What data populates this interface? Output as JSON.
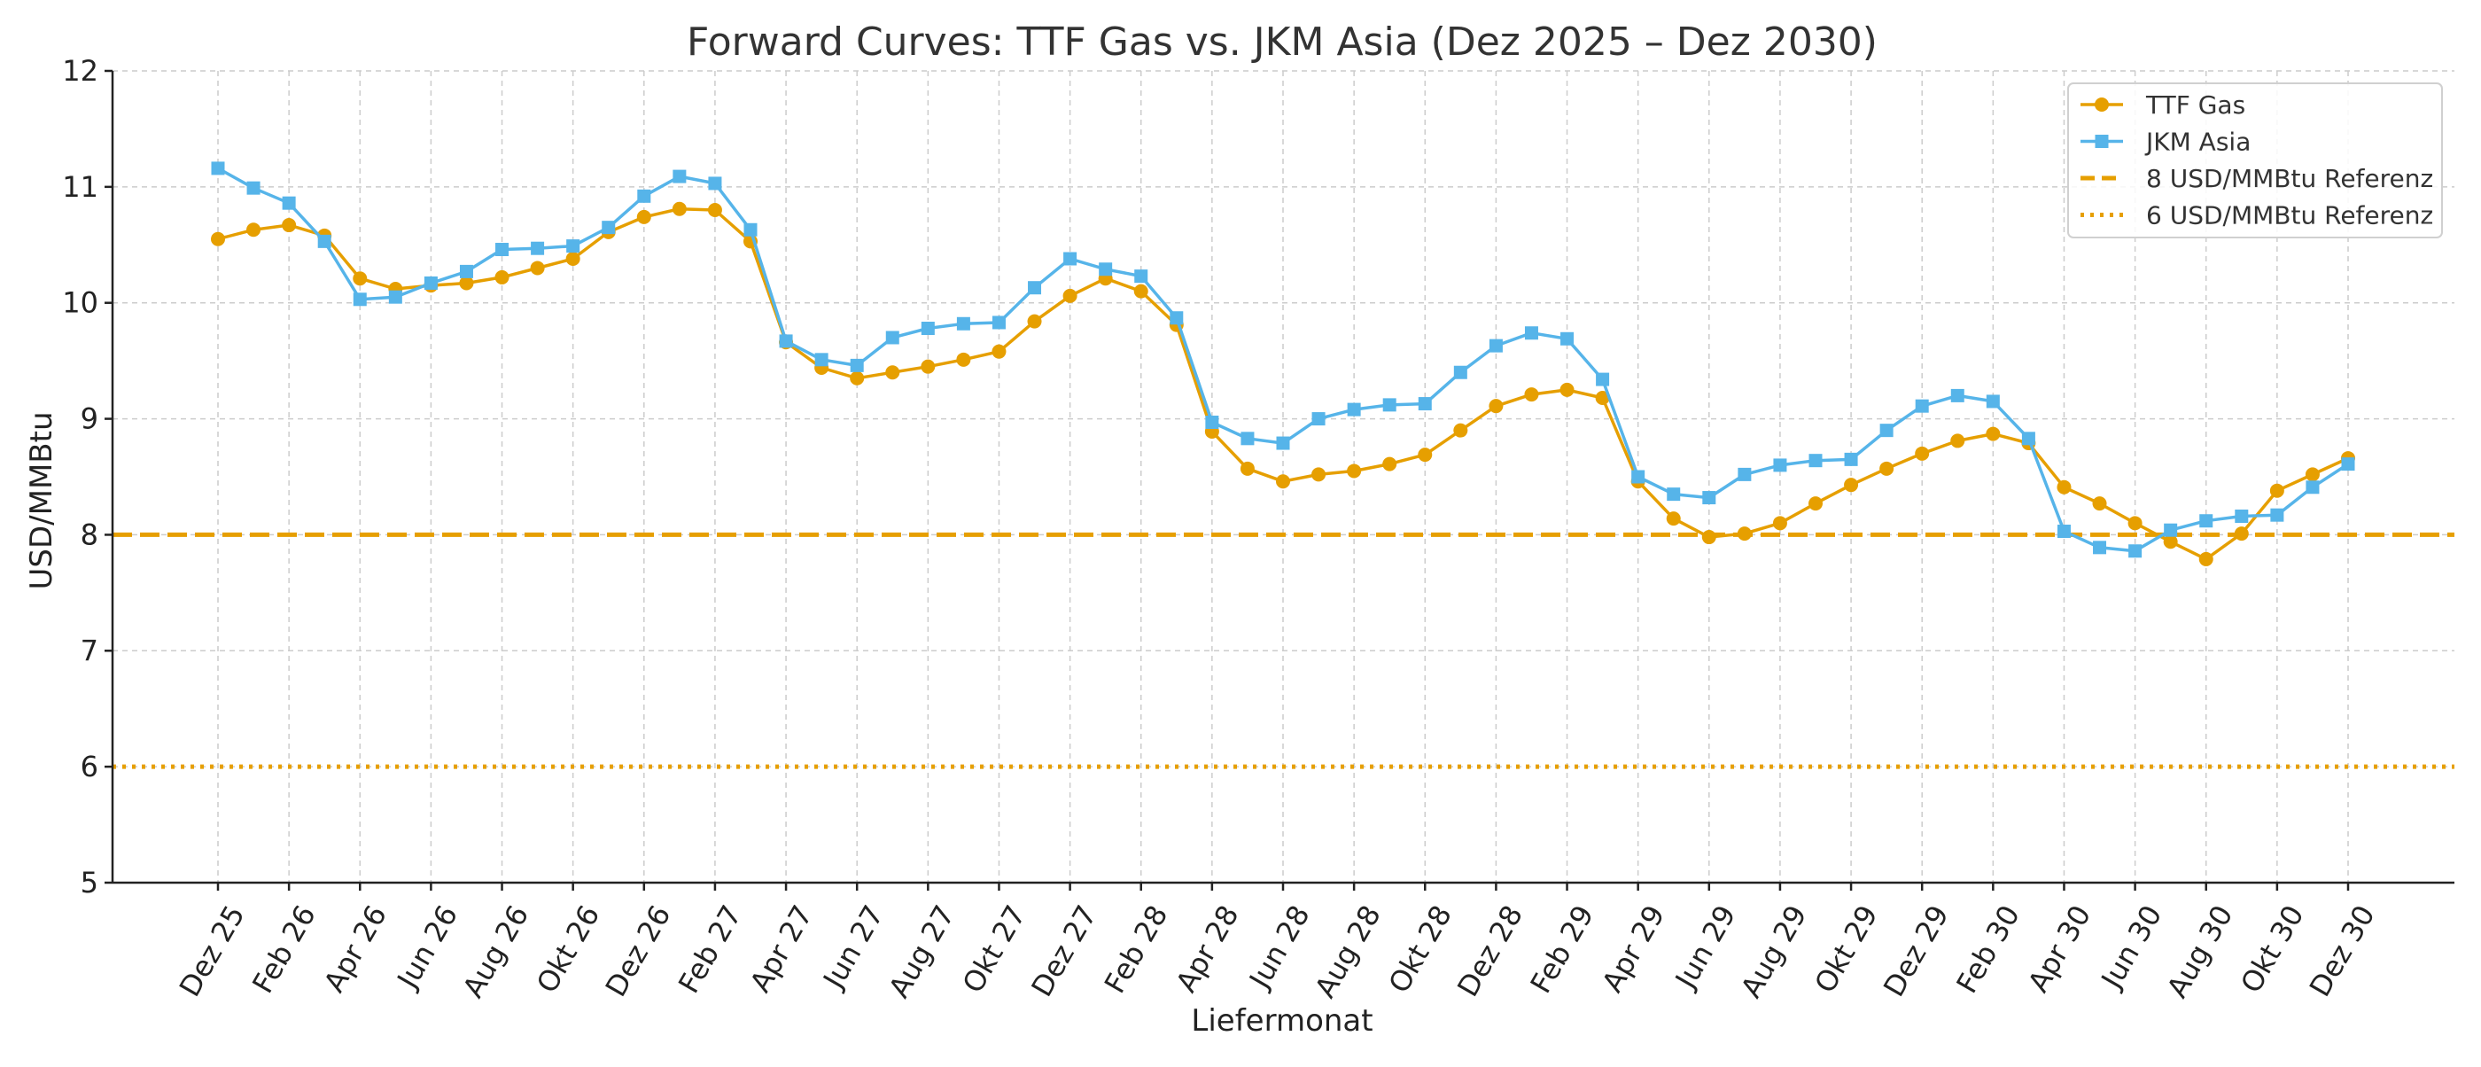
{
  "chart_data": {
    "type": "line",
    "title": "Forward Curves: TTF Gas vs. JKM Asia (Dez 2025 – Dez 2030)",
    "xlabel": "Liefermonat",
    "ylabel": "USD/MMBtu",
    "ylim": [
      5,
      12
    ],
    "yticks": [
      5,
      6,
      7,
      8,
      9,
      10,
      11,
      12
    ],
    "grid": true,
    "legend_position": "top-right",
    "categories": [
      "Dez 25",
      "Jan 26",
      "Feb 26",
      "Mär 26",
      "Apr 26",
      "Mai 26",
      "Jun 26",
      "Jul 26",
      "Aug 26",
      "Sep 26",
      "Okt 26",
      "Nov 26",
      "Dez 26",
      "Jan 27",
      "Feb 27",
      "Mär 27",
      "Apr 27",
      "Mai 27",
      "Jun 27",
      "Jul 27",
      "Aug 27",
      "Sep 27",
      "Okt 27",
      "Nov 27",
      "Dez 27",
      "Jan 28",
      "Feb 28",
      "Mär 28",
      "Apr 28",
      "Mai 28",
      "Jun 28",
      "Jul 28",
      "Aug 28",
      "Sep 28",
      "Okt 28",
      "Nov 28",
      "Dez 28",
      "Jan 29",
      "Feb 29",
      "Mär 29",
      "Apr 29",
      "Mai 29",
      "Jun 29",
      "Jul 29",
      "Aug 29",
      "Sep 29",
      "Okt 29",
      "Nov 29",
      "Dez 29",
      "Jan 30",
      "Feb 30",
      "Mär 30",
      "Apr 30",
      "Mai 30",
      "Jun 30",
      "Jul 30",
      "Aug 30",
      "Sep 30",
      "Okt 30",
      "Nov 30",
      "Dez 30"
    ],
    "tick_labels": [
      "Dez 25",
      "Feb 26",
      "Apr 26",
      "Jun 26",
      "Aug 26",
      "Okt 26",
      "Dez 26",
      "Feb 27",
      "Apr 27",
      "Jun 27",
      "Aug 27",
      "Okt 27",
      "Dez 27",
      "Feb 28",
      "Apr 28",
      "Jun 28",
      "Aug 28",
      "Okt 28",
      "Dez 28",
      "Feb 29",
      "Apr 29",
      "Jun 29",
      "Aug 29",
      "Okt 29",
      "Dez 29",
      "Feb 30",
      "Apr 30",
      "Jun 30",
      "Aug 30",
      "Okt 30",
      "Dez 30"
    ],
    "series": [
      {
        "name": "TTF Gas",
        "color": "#E69F00",
        "marker": "circle",
        "values": [
          10.55,
          10.63,
          10.67,
          10.58,
          10.21,
          10.12,
          10.15,
          10.17,
          10.22,
          10.3,
          10.38,
          10.61,
          10.74,
          10.81,
          10.8,
          10.53,
          9.66,
          9.44,
          9.35,
          9.4,
          9.45,
          9.51,
          9.58,
          9.84,
          10.06,
          10.21,
          10.1,
          9.81,
          8.89,
          8.57,
          8.46,
          8.52,
          8.55,
          8.61,
          8.69,
          8.9,
          9.11,
          9.21,
          9.25,
          9.18,
          8.46,
          8.14,
          7.98,
          8.01,
          8.1,
          8.27,
          8.43,
          8.57,
          8.7,
          8.81,
          8.87,
          8.79,
          8.41,
          8.27,
          8.1,
          7.94,
          7.79,
          8.01,
          8.38,
          8.52,
          8.66
        ]
      },
      {
        "name": "JKM Asia",
        "color": "#56B4E9",
        "marker": "square",
        "values": [
          11.16,
          10.99,
          10.86,
          10.53,
          10.03,
          10.05,
          10.17,
          10.27,
          10.46,
          10.47,
          10.49,
          10.65,
          10.92,
          11.09,
          11.03,
          10.63,
          9.67,
          9.51,
          9.46,
          9.7,
          9.78,
          9.82,
          9.83,
          10.13,
          10.38,
          10.29,
          10.23,
          9.87,
          8.97,
          8.83,
          8.79,
          9.0,
          9.08,
          9.12,
          9.13,
          9.4,
          9.63,
          9.74,
          9.69,
          9.34,
          8.5,
          8.35,
          8.32,
          8.52,
          8.6,
          8.64,
          8.65,
          8.9,
          9.11,
          9.2,
          9.15,
          8.83,
          8.03,
          7.89,
          7.86,
          8.04,
          8.12,
          8.16,
          8.17,
          8.41,
          8.61
        ]
      }
    ],
    "reference_lines": [
      {
        "name": "8 USD/MMBtu Referenz",
        "value": 8,
        "color": "#E69F00",
        "style": "dashed"
      },
      {
        "name": "6 USD/MMBtu Referenz",
        "value": 6,
        "color": "#E69F00",
        "style": "dotted"
      }
    ]
  }
}
